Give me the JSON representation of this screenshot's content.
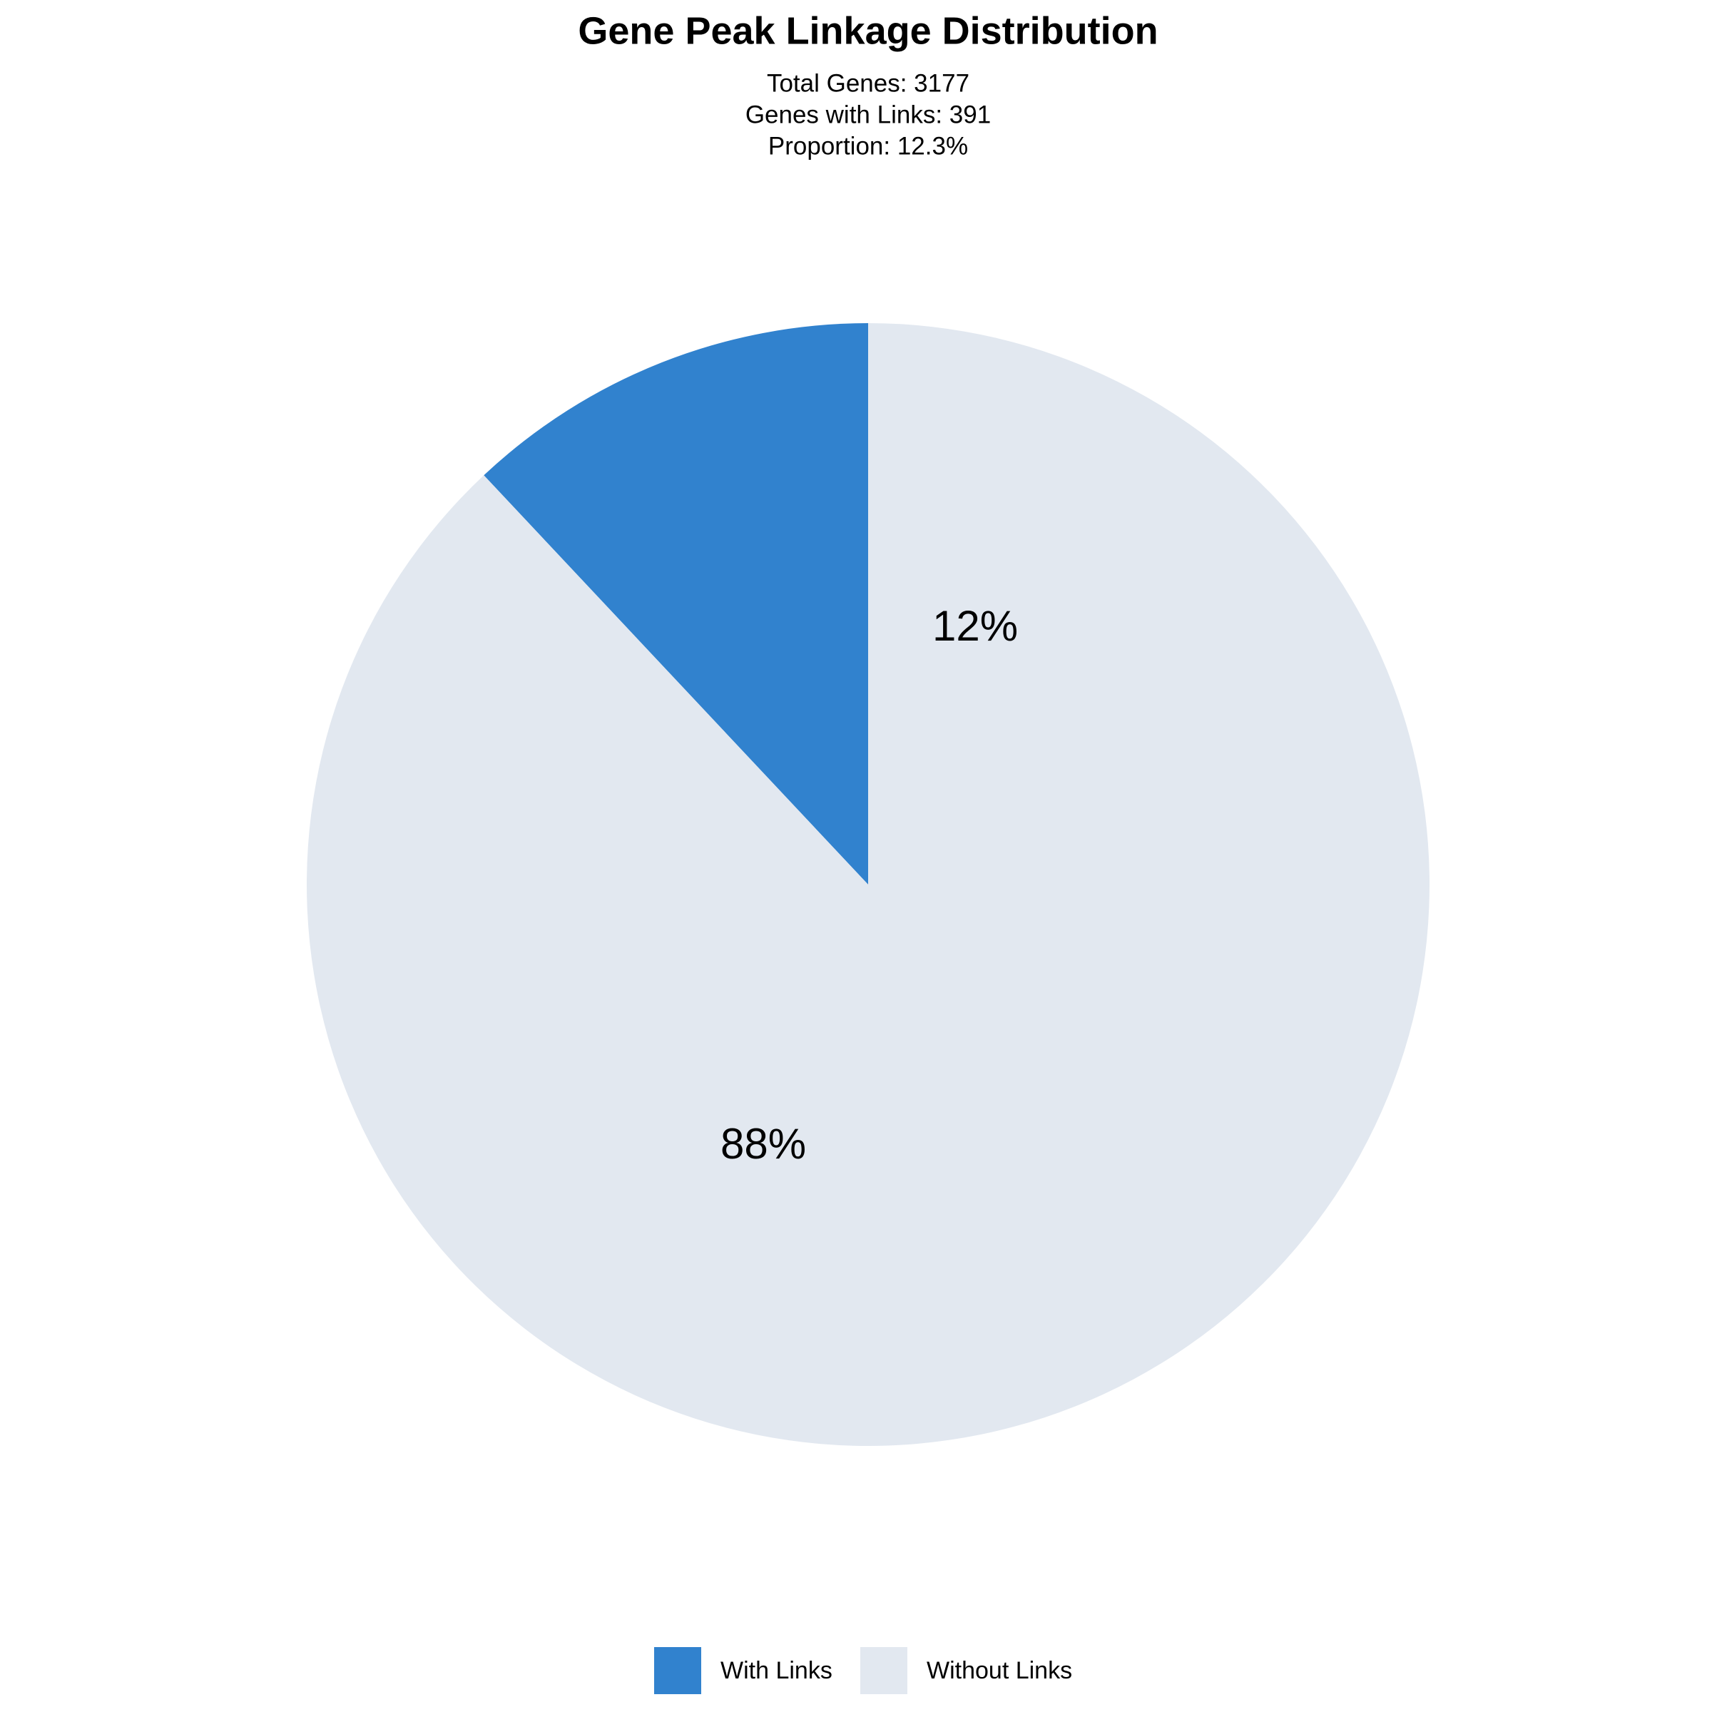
{
  "chart_data": {
    "type": "pie",
    "title": "Gene Peak Linkage Distribution",
    "subtitle": [
      "Total Genes: 3177",
      "Genes with Links: 391",
      "Proportion: 12.3%"
    ],
    "categories": [
      "With Links",
      "Without Links"
    ],
    "values": [
      12,
      88
    ],
    "value_labels": [
      "12%",
      "88%"
    ],
    "colors": [
      "#3182ce",
      "#e2e8f0"
    ],
    "direction": "counterclockwise",
    "legend": "bottom"
  }
}
